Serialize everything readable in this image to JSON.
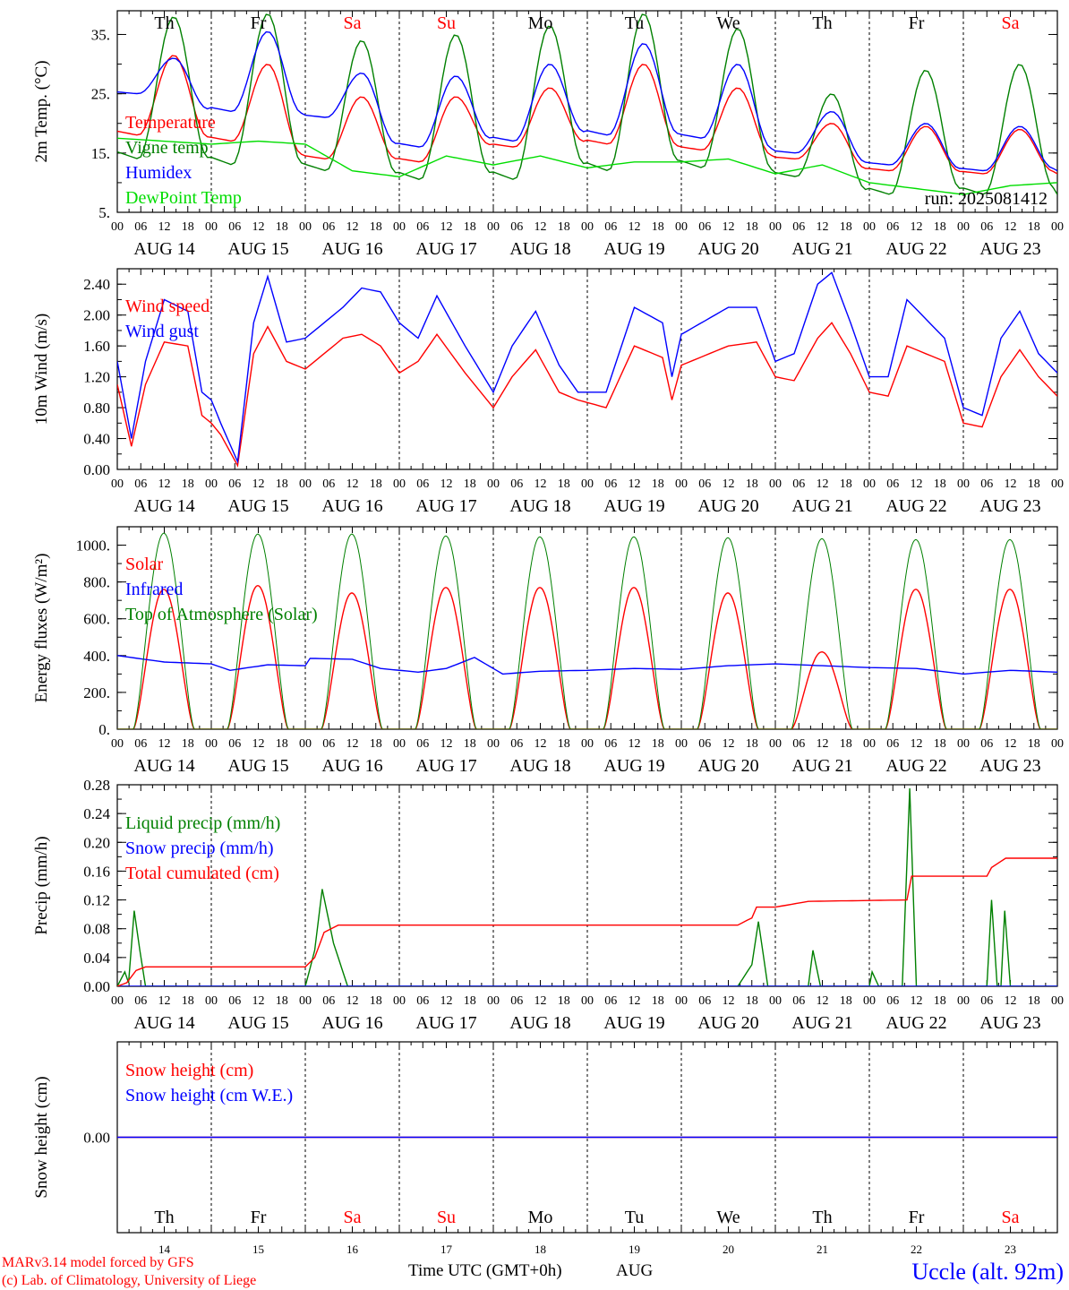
{
  "days": [
    "Th",
    "Fr",
    "Sa",
    "Su",
    "Mo",
    "Tu",
    "We",
    "Th",
    "Fr",
    "Sa"
  ],
  "weekend_days": [
    "Sa",
    "Su"
  ],
  "dates": [
    "AUG 14",
    "AUG 15",
    "AUG 16",
    "AUG 17",
    "AUG 18",
    "AUG 19",
    "AUG 20",
    "AUG 21",
    "AUG 22",
    "AUG 23"
  ],
  "day_numbers": [
    "14",
    "15",
    "16",
    "17",
    "18",
    "19",
    "20",
    "21",
    "22",
    "23"
  ],
  "hour_ticks": [
    "00",
    "06",
    "12",
    "18"
  ],
  "run_label": "run: 2025081412",
  "footer": {
    "credit1": "MARv3.14 model forced by GFS",
    "credit2": "(c) Lab. of Climatology, University of Liege",
    "time_axis": "Time UTC (GMT+0h)",
    "month": "AUG",
    "station": "Uccle (alt. 92m)"
  },
  "colors": {
    "red": "#ff0000",
    "green": "#008000",
    "blue": "#0000ff",
    "lightgreen": "#00dd00"
  },
  "chart_data": [
    {
      "type": "line",
      "ylabel": "2m Temp. (°C)",
      "ylim": [
        5,
        39
      ],
      "yticks": [
        "5.",
        "15.",
        "25.",
        "35."
      ],
      "yticks_values": [
        5,
        15,
        25,
        35
      ],
      "series": [
        {
          "name": "Temperature",
          "color": "red",
          "kind": "diurnal",
          "min": [
            18,
            17,
            14,
            13.5,
            16,
            16.5,
            15.5,
            14,
            12,
            11.5
          ],
          "max": [
            31.5,
            30,
            24.5,
            24.5,
            26,
            30,
            26,
            20,
            19.5,
            19
          ]
        },
        {
          "name": "Vigne temp",
          "color": "green",
          "kind": "diurnal",
          "min": [
            14,
            13,
            12,
            10.5,
            10.5,
            12,
            12.5,
            11,
            8,
            8
          ],
          "max": [
            38,
            38.5,
            34,
            35,
            36.5,
            38.5,
            36,
            25,
            29,
            30
          ]
        },
        {
          "name": "Humidex",
          "color": "blue",
          "kind": "diurnal",
          "min": [
            25,
            22,
            21,
            16,
            17,
            18,
            17.5,
            15,
            13,
            12
          ],
          "max": [
            31,
            35.5,
            28.5,
            28,
            30,
            33.5,
            30,
            22,
            20,
            19.5
          ]
        },
        {
          "name": "DewPoint Temp",
          "color": "lightgreen",
          "kind": "smooth",
          "points": [
            [
              0,
              17.5
            ],
            [
              1,
              16.5
            ],
            [
              1.5,
              17
            ],
            [
              2,
              16.5
            ],
            [
              2.5,
              12
            ],
            [
              3,
              11
            ],
            [
              3.5,
              14.5
            ],
            [
              4,
              13
            ],
            [
              4.5,
              14.5
            ],
            [
              5,
              12.5
            ],
            [
              5.5,
              13.5
            ],
            [
              6,
              13.5
            ],
            [
              6.5,
              14
            ],
            [
              7,
              11.5
            ],
            [
              7.5,
              13
            ],
            [
              8,
              10
            ],
            [
              8.5,
              9
            ],
            [
              9,
              8
            ],
            [
              9.5,
              9.5
            ],
            [
              10,
              10
            ]
          ]
        }
      ]
    },
    {
      "type": "line",
      "ylabel": "10m Wind (m/s)",
      "ylim": [
        0,
        2.6
      ],
      "yticks": [
        "0.00",
        "0.40",
        "0.80",
        "1.20",
        "1.60",
        "2.00",
        "2.40"
      ],
      "yticks_values": [
        0,
        0.4,
        0.8,
        1.2,
        1.6,
        2.0,
        2.4
      ],
      "series": [
        {
          "name": "Wind speed",
          "color": "red",
          "kind": "smooth",
          "points": [
            [
              0,
              1.1
            ],
            [
              0.15,
              0.3
            ],
            [
              0.3,
              1.1
            ],
            [
              0.5,
              1.65
            ],
            [
              0.75,
              1.6
            ],
            [
              0.9,
              0.7
            ],
            [
              1.0,
              0.6
            ],
            [
              1.1,
              0.45
            ],
            [
              1.28,
              0.05
            ],
            [
              1.45,
              1.5
            ],
            [
              1.6,
              1.85
            ],
            [
              1.8,
              1.4
            ],
            [
              2.0,
              1.3
            ],
            [
              2.4,
              1.7
            ],
            [
              2.6,
              1.75
            ],
            [
              2.8,
              1.6
            ],
            [
              3.0,
              1.25
            ],
            [
              3.2,
              1.4
            ],
            [
              3.4,
              1.75
            ],
            [
              3.7,
              1.25
            ],
            [
              4.0,
              0.8
            ],
            [
              4.2,
              1.2
            ],
            [
              4.45,
              1.55
            ],
            [
              4.7,
              1.0
            ],
            [
              4.9,
              0.9
            ],
            [
              5.2,
              0.8
            ],
            [
              5.5,
              1.6
            ],
            [
              5.8,
              1.45
            ],
            [
              5.9,
              0.9
            ],
            [
              6.0,
              1.35
            ],
            [
              6.5,
              1.6
            ],
            [
              6.8,
              1.65
            ],
            [
              7.0,
              1.2
            ],
            [
              7.2,
              1.15
            ],
            [
              7.45,
              1.7
            ],
            [
              7.6,
              1.9
            ],
            [
              7.8,
              1.5
            ],
            [
              8.0,
              1.0
            ],
            [
              8.2,
              0.95
            ],
            [
              8.4,
              1.6
            ],
            [
              8.6,
              1.5
            ],
            [
              8.8,
              1.4
            ],
            [
              9.0,
              0.6
            ],
            [
              9.2,
              0.55
            ],
            [
              9.4,
              1.2
            ],
            [
              9.6,
              1.55
            ],
            [
              9.8,
              1.2
            ],
            [
              10.0,
              0.95
            ]
          ]
        },
        {
          "name": "Wind gust",
          "color": "blue",
          "kind": "smooth",
          "points": [
            [
              0,
              1.4
            ],
            [
              0.15,
              0.4
            ],
            [
              0.3,
              1.4
            ],
            [
              0.5,
              2.2
            ],
            [
              0.75,
              2.05
            ],
            [
              0.9,
              1.0
            ],
            [
              1.0,
              0.9
            ],
            [
              1.1,
              0.6
            ],
            [
              1.28,
              0.1
            ],
            [
              1.45,
              1.9
            ],
            [
              1.6,
              2.5
            ],
            [
              1.8,
              1.65
            ],
            [
              2.0,
              1.7
            ],
            [
              2.4,
              2.1
            ],
            [
              2.6,
              2.35
            ],
            [
              2.8,
              2.3
            ],
            [
              3.0,
              1.9
            ],
            [
              3.2,
              1.7
            ],
            [
              3.4,
              2.25
            ],
            [
              3.7,
              1.6
            ],
            [
              4.0,
              1.0
            ],
            [
              4.2,
              1.6
            ],
            [
              4.45,
              2.05
            ],
            [
              4.7,
              1.35
            ],
            [
              4.9,
              1.0
            ],
            [
              5.2,
              1.0
            ],
            [
              5.5,
              2.1
            ],
            [
              5.8,
              1.9
            ],
            [
              5.9,
              1.2
            ],
            [
              6.0,
              1.75
            ],
            [
              6.5,
              2.1
            ],
            [
              6.8,
              2.1
            ],
            [
              7.0,
              1.4
            ],
            [
              7.2,
              1.5
            ],
            [
              7.45,
              2.4
            ],
            [
              7.6,
              2.55
            ],
            [
              7.8,
              1.9
            ],
            [
              8.0,
              1.2
            ],
            [
              8.2,
              1.2
            ],
            [
              8.4,
              2.2
            ],
            [
              8.6,
              1.95
            ],
            [
              8.8,
              1.7
            ],
            [
              9.0,
              0.8
            ],
            [
              9.2,
              0.7
            ],
            [
              9.4,
              1.7
            ],
            [
              9.6,
              2.05
            ],
            [
              9.8,
              1.5
            ],
            [
              10.0,
              1.25
            ]
          ]
        }
      ]
    },
    {
      "type": "line",
      "ylabel": "Energy fluxes (W/m²)",
      "ylim": [
        0,
        1100
      ],
      "yticks": [
        "0.",
        "200.",
        "400.",
        "600.",
        "800.",
        "1000."
      ],
      "yticks_values": [
        0,
        200,
        400,
        600,
        800,
        1000
      ],
      "series": [
        {
          "name": "Solar",
          "color": "red",
          "kind": "solar",
          "peaks": [
            760,
            780,
            740,
            770,
            770,
            770,
            740,
            420,
            760,
            760
          ]
        },
        {
          "name": "Infrared",
          "color": "blue",
          "kind": "smooth",
          "points": [
            [
              0,
              400
            ],
            [
              0.5,
              365
            ],
            [
              1,
              355
            ],
            [
              1.2,
              320
            ],
            [
              1.6,
              350
            ],
            [
              2,
              345
            ],
            [
              2.05,
              385
            ],
            [
              2.5,
              380
            ],
            [
              2.8,
              330
            ],
            [
              3.2,
              310
            ],
            [
              3.5,
              330
            ],
            [
              3.8,
              390
            ],
            [
              4.1,
              300
            ],
            [
              4.5,
              315
            ],
            [
              5,
              320
            ],
            [
              5.5,
              330
            ],
            [
              6,
              325
            ],
            [
              6.5,
              345
            ],
            [
              7,
              355
            ],
            [
              7.5,
              345
            ],
            [
              8,
              335
            ],
            [
              8.5,
              330
            ],
            [
              9,
              300
            ],
            [
              9.5,
              320
            ],
            [
              10,
              310
            ]
          ]
        },
        {
          "name": "Top of Atmosphere (Solar)",
          "color": "green",
          "kind": "solar",
          "peaks": [
            1065,
            1060,
            1060,
            1050,
            1045,
            1045,
            1040,
            1035,
            1030,
            1030
          ]
        }
      ]
    },
    {
      "type": "line",
      "ylabel": "Precip (mm/h)",
      "ylim": [
        0,
        0.28
      ],
      "yticks": [
        "0.00",
        "0.04",
        "0.08",
        "0.12",
        "0.16",
        "0.20",
        "0.24",
        "0.28"
      ],
      "yticks_values": [
        0,
        0.04,
        0.08,
        0.12,
        0.16,
        0.2,
        0.24,
        0.28
      ],
      "series": [
        {
          "name": "Liquid precip (mm/h)",
          "color": "green",
          "kind": "smooth",
          "points": [
            [
              0,
              0
            ],
            [
              0.08,
              0.02
            ],
            [
              0.12,
              0.005
            ],
            [
              0.18,
              0.105
            ],
            [
              0.24,
              0.05
            ],
            [
              0.3,
              0
            ],
            [
              2.0,
              0
            ],
            [
              2.1,
              0.05
            ],
            [
              2.18,
              0.135
            ],
            [
              2.3,
              0.06
            ],
            [
              2.45,
              0
            ],
            [
              6.6,
              0
            ],
            [
              6.75,
              0.03
            ],
            [
              6.82,
              0.09
            ],
            [
              6.92,
              0
            ],
            [
              7.35,
              0
            ],
            [
              7.4,
              0.05
            ],
            [
              7.48,
              0
            ],
            [
              8.0,
              0
            ],
            [
              8.03,
              0.02
            ],
            [
              8.1,
              0
            ],
            [
              8.35,
              0
            ],
            [
              8.43,
              0.275
            ],
            [
              8.5,
              0
            ],
            [
              9.25,
              0
            ],
            [
              9.3,
              0.12
            ],
            [
              9.36,
              0
            ],
            [
              9.4,
              0
            ],
            [
              9.44,
              0.105
            ],
            [
              9.5,
              0
            ],
            [
              10,
              0
            ]
          ]
        },
        {
          "name": "Snow precip (mm/h)",
          "color": "blue",
          "kind": "smooth",
          "points": [
            [
              0,
              0
            ],
            [
              10,
              0
            ]
          ]
        },
        {
          "name": "Total cumulated (cm)",
          "color": "red",
          "kind": "smooth",
          "points": [
            [
              0,
              0
            ],
            [
              0.1,
              0.005
            ],
            [
              0.2,
              0.022
            ],
            [
              0.3,
              0.027
            ],
            [
              2.0,
              0.027
            ],
            [
              2.1,
              0.04
            ],
            [
              2.2,
              0.075
            ],
            [
              2.35,
              0.085
            ],
            [
              6.6,
              0.085
            ],
            [
              6.75,
              0.095
            ],
            [
              6.8,
              0.11
            ],
            [
              7.0,
              0.11
            ],
            [
              7.35,
              0.118
            ],
            [
              8.4,
              0.12
            ],
            [
              8.45,
              0.153
            ],
            [
              9.25,
              0.153
            ],
            [
              9.3,
              0.165
            ],
            [
              9.45,
              0.178
            ],
            [
              10,
              0.178
            ]
          ]
        }
      ]
    },
    {
      "type": "line",
      "ylabel": "Snow height (cm)",
      "ylim": [
        -1,
        1
      ],
      "yticks": [
        "0.00"
      ],
      "yticks_values": [
        0
      ],
      "series": [
        {
          "name": "Snow height (cm)",
          "color": "red",
          "kind": "smooth",
          "points": [
            [
              0,
              0
            ],
            [
              10,
              0
            ]
          ]
        },
        {
          "name": "Snow height (cm W.E.)",
          "color": "blue",
          "kind": "smooth",
          "points": [
            [
              0,
              0
            ],
            [
              10,
              0
            ]
          ]
        }
      ]
    }
  ]
}
